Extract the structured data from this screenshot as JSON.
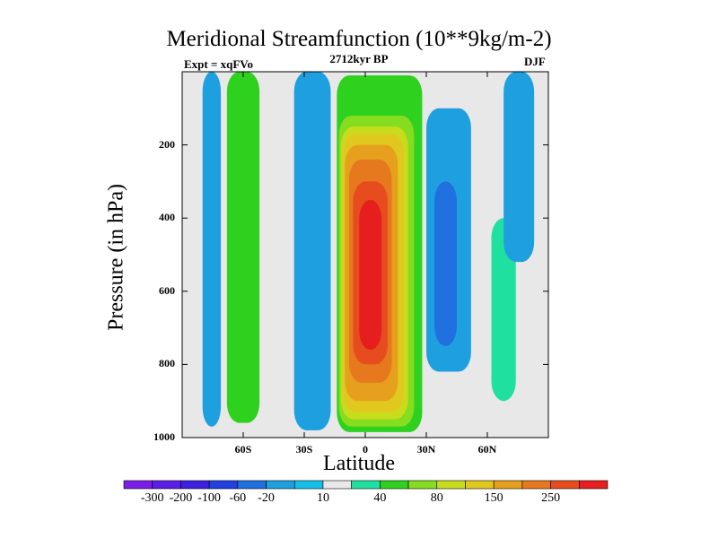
{
  "chart_data": {
    "type": "contour",
    "title": "Meridional Streamfunction (10**9kg/m-2)",
    "experiment": "Expt = xqFVo",
    "subtitle": "2712kyr BP",
    "season": "DJF",
    "xlabel": "Latitude",
    "ylabel": "Pressure (in hPa)",
    "xlim": [
      -90,
      90
    ],
    "ylim": [
      1000,
      0
    ],
    "x_ticks": [
      {
        "value": -60,
        "label": "60S"
      },
      {
        "value": -30,
        "label": "30S"
      },
      {
        "value": 0,
        "label": "0"
      },
      {
        "value": 30,
        "label": "30N"
      },
      {
        "value": 60,
        "label": "60N"
      }
    ],
    "y_ticks": [
      {
        "value": 200,
        "label": "200"
      },
      {
        "value": 400,
        "label": "400"
      },
      {
        "value": 600,
        "label": "600"
      },
      {
        "value": 800,
        "label": "800"
      },
      {
        "value": 1000,
        "label": "1000"
      }
    ],
    "colorbar": {
      "levels": [
        -300,
        -200,
        -100,
        -60,
        -20,
        10,
        40,
        80,
        150,
        250
      ],
      "labels": [
        "-300",
        "-200",
        "-100",
        "-60",
        "-20",
        "10",
        "40",
        "80",
        "150",
        "250"
      ],
      "colors": [
        "#7a1ee6",
        "#5a1ee6",
        "#3c20e0",
        "#2040e0",
        "#2070e0",
        "#1ea0e0",
        "#14c0e8",
        "#e8e8e8",
        "#20e0a0",
        "#2ed21e",
        "#86dc1e",
        "#c8dc1e",
        "#e0c81e",
        "#e6a01e",
        "#e6781e",
        "#e64c1e",
        "#e61e1e"
      ]
    },
    "regions": [
      {
        "name": "sh-polar-cell",
        "fill": "#1ea0e0",
        "lat": [
          -80,
          -71
        ],
        "p": [
          0,
          970
        ],
        "value": -40
      },
      {
        "name": "sh-ferrel-cell",
        "fill": "#2ed21e",
        "lat": [
          -68,
          -52
        ],
        "p": [
          0,
          960
        ],
        "value": 40
      },
      {
        "name": "sh-hadley-edge",
        "fill": "#1ea0e0",
        "lat": [
          -35,
          -17
        ],
        "p": [
          0,
          980
        ],
        "value": -40
      },
      {
        "name": "tropical-cell-outer",
        "fill": "#2ed21e",
        "lat": [
          -14,
          28
        ],
        "p": [
          10,
          985
        ],
        "value": 40
      },
      {
        "name": "tropical-cell-80",
        "fill": "#86dc1e",
        "lat": [
          -13,
          24
        ],
        "p": [
          120,
          970
        ],
        "value": 80
      },
      {
        "name": "tropical-cell-120",
        "fill": "#c8dc1e",
        "lat": [
          -12,
          21
        ],
        "p": [
          150,
          950
        ],
        "value": 120
      },
      {
        "name": "tropical-cell-150",
        "fill": "#e0c81e",
        "lat": [
          -11,
          19
        ],
        "p": [
          170,
          930
        ],
        "value": 150
      },
      {
        "name": "tropical-cell-200",
        "fill": "#e6a01e",
        "lat": [
          -10,
          16
        ],
        "p": [
          200,
          900
        ],
        "value": 200
      },
      {
        "name": "tropical-cell-250",
        "fill": "#e6781e",
        "lat": [
          -8,
          13
        ],
        "p": [
          240,
          850
        ],
        "value": 250
      },
      {
        "name": "tropical-cell-300",
        "fill": "#e64c1e",
        "lat": [
          -6,
          11
        ],
        "p": [
          300,
          800
        ],
        "value": 300
      },
      {
        "name": "tropical-cell-core",
        "fill": "#e61e1e",
        "lat": [
          -3,
          8
        ],
        "p": [
          350,
          760
        ],
        "value": 350
      },
      {
        "name": "nh-ferrel-cell",
        "fill": "#1ea0e0",
        "lat": [
          30,
          52
        ],
        "p": [
          100,
          820
        ],
        "value": -40
      },
      {
        "name": "nh-ferrel-core",
        "fill": "#2070e0",
        "lat": [
          34,
          45
        ],
        "p": [
          300,
          750
        ],
        "value": -60
      },
      {
        "name": "nh-polar-cell",
        "fill": "#20e0a0",
        "lat": [
          62,
          74
        ],
        "p": [
          400,
          900
        ],
        "value": 20
      },
      {
        "name": "nh-upper-negative",
        "fill": "#1ea0e0",
        "lat": [
          68,
          83
        ],
        "p": [
          0,
          520
        ],
        "value": -40
      }
    ]
  }
}
